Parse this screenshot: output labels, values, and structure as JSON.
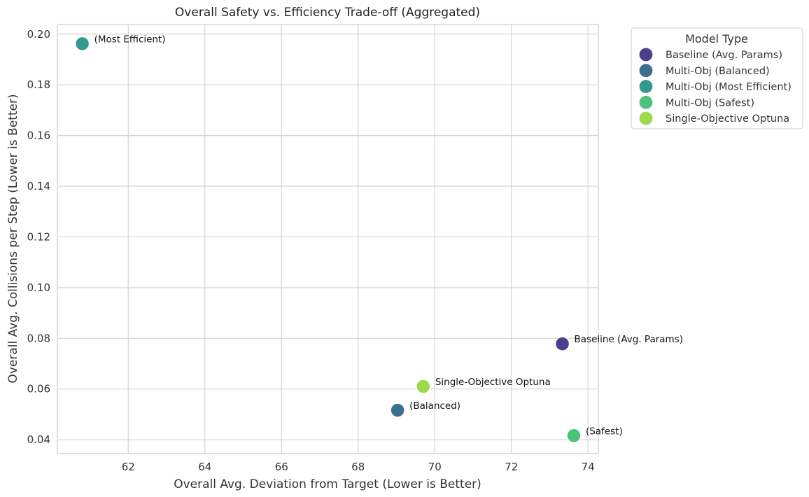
{
  "chart_data": {
    "type": "scatter",
    "title": "Overall Safety vs. Efficiency Trade-off (Aggregated)",
    "xlabel": "Overall Avg. Deviation from Target (Lower is Better)",
    "ylabel": "Overall Avg. Collisions per Step (Lower is Better)",
    "xlim": [
      60.15,
      74.27
    ],
    "ylim": [
      0.0345,
      0.2038
    ],
    "xticks": [
      62,
      64,
      66,
      68,
      70,
      72,
      74
    ],
    "yticks": [
      0.04,
      0.06,
      0.08,
      0.1,
      0.12,
      0.14,
      0.16,
      0.18,
      0.2
    ],
    "ytick_labels": [
      "0.04",
      "0.06",
      "0.08",
      "0.10",
      "0.12",
      "0.14",
      "0.16",
      "0.18",
      "0.20"
    ],
    "grid": true,
    "legend": {
      "title": "Model Type",
      "placement": "outside-top-right",
      "entries": [
        {
          "label": "Baseline (Avg. Params)",
          "color": "#4a3f8a"
        },
        {
          "label": "Multi-Obj (Balanced)",
          "color": "#3c6e8f"
        },
        {
          "label": "Multi-Obj (Most Efficient)",
          "color": "#32998f"
        },
        {
          "label": "Multi-Obj (Safest)",
          "color": "#4cc27a"
        },
        {
          "label": "Single-Objective Optuna",
          "color": "#9dd94a"
        }
      ]
    },
    "series": [
      {
        "name": "Baseline (Avg. Params)",
        "x": 73.33,
        "y": 0.0778,
        "color": "#4a3f8a",
        "annotation": "Baseline (Avg. Params)"
      },
      {
        "name": "Multi-Obj (Balanced)",
        "x": 69.03,
        "y": 0.0516,
        "color": "#3c6e8f",
        "annotation": "(Balanced)"
      },
      {
        "name": "Multi-Obj (Most Efficient)",
        "x": 60.8,
        "y": 0.1962,
        "color": "#32998f",
        "annotation": "(Most Efficient)"
      },
      {
        "name": "Multi-Obj (Safest)",
        "x": 73.63,
        "y": 0.0416,
        "color": "#4cc27a",
        "annotation": "(Safest)"
      },
      {
        "name": "Single-Objective Optuna",
        "x": 69.7,
        "y": 0.061,
        "color": "#9dd94a",
        "annotation": "Single-Objective Optuna"
      }
    ]
  }
}
